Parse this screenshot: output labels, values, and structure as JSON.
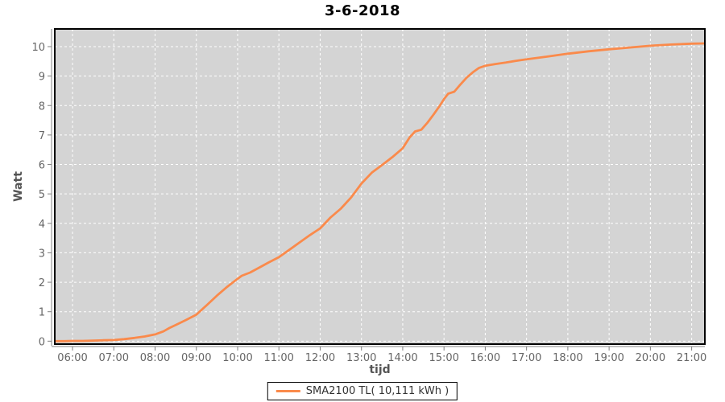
{
  "title": "3-6-2018",
  "colors": {
    "page_bg": "#ffffff",
    "plot_bg": "#d4d4d4",
    "grid": "#ffffff",
    "line": "#fa8a4b",
    "plot_border": "#000000",
    "axis": "#808080",
    "tick_label": "#666666",
    "axis_label": "#555555",
    "title": "#000000",
    "legend_text": "#333333"
  },
  "axes": {
    "x": {
      "label": "tijd",
      "tick_labels": [
        "06:00",
        "07:00",
        "08:00",
        "09:00",
        "10:00",
        "11:00",
        "12:00",
        "13:00",
        "14:00",
        "15:00",
        "16:00",
        "17:00",
        "18:00",
        "19:00",
        "20:00",
        "21:00"
      ],
      "tick_hours": [
        6,
        7,
        8,
        9,
        10,
        11,
        12,
        13,
        14,
        15,
        16,
        17,
        18,
        19,
        20,
        21
      ]
    },
    "y": {
      "label": "Watt",
      "tick_values": [
        0,
        1,
        2,
        3,
        4,
        5,
        6,
        7,
        8,
        9,
        10
      ]
    }
  },
  "legend": {
    "label": "SMA2100 TL( 10,111 kWh )"
  },
  "chart_data": {
    "type": "line",
    "title": "3-6-2018",
    "xlabel": "tijd",
    "ylabel": "Watt",
    "x_unit": "hour_of_day",
    "xlim": [
      5.57,
      21.32
    ],
    "ylim": [
      -0.1,
      10.6
    ],
    "grid": true,
    "grid_style": "white dashed on gray plot background",
    "legend_position": "bottom",
    "series": [
      {
        "name": "SMA2100 TL( 10,111 kWh )",
        "color": "#fa8a4b",
        "total_kwh_label": "10,111 kWh",
        "x": [
          5.6,
          5.8,
          6.0,
          6.25,
          6.5,
          6.75,
          7.0,
          7.25,
          7.5,
          7.75,
          8.0,
          8.2,
          8.35,
          8.5,
          8.75,
          9.0,
          9.25,
          9.5,
          9.75,
          10.0,
          10.1,
          10.3,
          10.5,
          10.75,
          11.0,
          11.25,
          11.5,
          11.75,
          12.0,
          12.25,
          12.5,
          12.75,
          13.0,
          13.25,
          13.5,
          13.75,
          14.0,
          14.17,
          14.3,
          14.45,
          14.6,
          14.75,
          14.9,
          15.0,
          15.1,
          15.25,
          15.4,
          15.55,
          15.7,
          15.85,
          16.0,
          16.25,
          16.5,
          16.75,
          17.0,
          17.5,
          18.0,
          18.5,
          19.0,
          19.5,
          20.0,
          20.5,
          21.0,
          21.3
        ],
        "values": [
          0.0,
          0.0,
          0.01,
          0.01,
          0.02,
          0.03,
          0.04,
          0.07,
          0.11,
          0.16,
          0.23,
          0.33,
          0.45,
          0.55,
          0.72,
          0.9,
          1.22,
          1.55,
          1.85,
          2.12,
          2.22,
          2.33,
          2.48,
          2.67,
          2.85,
          3.1,
          3.35,
          3.6,
          3.83,
          4.2,
          4.5,
          4.88,
          5.35,
          5.72,
          5.98,
          6.25,
          6.55,
          6.92,
          7.12,
          7.18,
          7.42,
          7.7,
          8.0,
          8.22,
          8.4,
          8.47,
          8.72,
          8.95,
          9.13,
          9.28,
          9.35,
          9.41,
          9.46,
          9.52,
          9.57,
          9.66,
          9.76,
          9.84,
          9.91,
          9.97,
          10.03,
          10.07,
          10.1,
          10.11
        ]
      }
    ]
  }
}
